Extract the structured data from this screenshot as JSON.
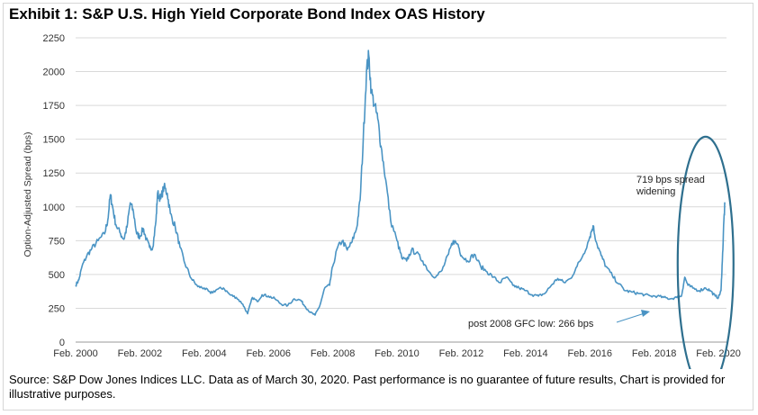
{
  "title": "Exhibit 1: S&P U.S. High Yield Corporate Bond Index OAS History",
  "source": "Source: S&P Dow Jones Indices LLC. Data as of March 30, 2020. Past performance is no guarantee of future results, Chart is provided for illustrative purposes.",
  "colors": {
    "line": "#4a94c4",
    "circle": "#2e6f8e",
    "arrow": "#4a94c4",
    "grid": "#d9d9d9"
  },
  "chart_data": {
    "type": "line",
    "title": "Exhibit 1: S&P U.S. High Yield Corporate Bond Index OAS History",
    "xlabel": "",
    "ylabel": "Option-Adjusted Spread (bps)",
    "xlim": [
      2000.0,
      2020.25
    ],
    "ylim": [
      0,
      2250
    ],
    "yticks": [
      0,
      250,
      500,
      750,
      1000,
      1250,
      1500,
      1750,
      2000,
      2250
    ],
    "xticks": [
      {
        "label": "Feb. 2000",
        "value": 2000.0
      },
      {
        "label": "Feb. 2002",
        "value": 2002.0
      },
      {
        "label": "Feb. 2004",
        "value": 2004.0
      },
      {
        "label": "Feb. 2006",
        "value": 2006.0
      },
      {
        "label": "Feb. 2008",
        "value": 2008.0
      },
      {
        "label": "Feb. 2010",
        "value": 2010.0
      },
      {
        "label": "Feb. 2012",
        "value": 2012.0
      },
      {
        "label": "Feb. 2014",
        "value": 2014.0
      },
      {
        "label": "Feb. 2016",
        "value": 2016.0
      },
      {
        "label": "Feb. 2018",
        "value": 2018.0
      },
      {
        "label": "Feb. 2020",
        "value": 2020.0
      }
    ],
    "grid": true,
    "series": [
      {
        "name": "OAS",
        "points": [
          [
            2000.0,
            420
          ],
          [
            2000.1,
            460
          ],
          [
            2000.2,
            560
          ],
          [
            2000.35,
            640
          ],
          [
            2000.5,
            690
          ],
          [
            2000.7,
            750
          ],
          [
            2000.9,
            800
          ],
          [
            2001.0,
            900
          ],
          [
            2001.08,
            1090
          ],
          [
            2001.15,
            1000
          ],
          [
            2001.25,
            870
          ],
          [
            2001.4,
            800
          ],
          [
            2001.5,
            760
          ],
          [
            2001.6,
            850
          ],
          [
            2001.7,
            1030
          ],
          [
            2001.8,
            960
          ],
          [
            2001.9,
            800
          ],
          [
            2002.0,
            780
          ],
          [
            2002.1,
            840
          ],
          [
            2002.2,
            760
          ],
          [
            2002.3,
            700
          ],
          [
            2002.4,
            700
          ],
          [
            2002.5,
            900
          ],
          [
            2002.55,
            1100
          ],
          [
            2002.65,
            1060
          ],
          [
            2002.75,
            1150
          ],
          [
            2002.85,
            1100
          ],
          [
            2002.95,
            950
          ],
          [
            2003.1,
            850
          ],
          [
            2003.25,
            700
          ],
          [
            2003.4,
            580
          ],
          [
            2003.6,
            470
          ],
          [
            2003.8,
            410
          ],
          [
            2004.0,
            400
          ],
          [
            2004.2,
            360
          ],
          [
            2004.4,
            390
          ],
          [
            2004.6,
            400
          ],
          [
            2004.8,
            350
          ],
          [
            2005.0,
            330
          ],
          [
            2005.2,
            280
          ],
          [
            2005.35,
            210
          ],
          [
            2005.5,
            330
          ],
          [
            2005.65,
            300
          ],
          [
            2005.8,
            350
          ],
          [
            2006.0,
            340
          ],
          [
            2006.2,
            320
          ],
          [
            2006.4,
            280
          ],
          [
            2006.6,
            270
          ],
          [
            2006.8,
            320
          ],
          [
            2007.0,
            310
          ],
          [
            2007.15,
            260
          ],
          [
            2007.3,
            220
          ],
          [
            2007.45,
            200
          ],
          [
            2007.6,
            270
          ],
          [
            2007.75,
            400
          ],
          [
            2007.9,
            420
          ],
          [
            2008.0,
            560
          ],
          [
            2008.15,
            700
          ],
          [
            2008.3,
            750
          ],
          [
            2008.45,
            680
          ],
          [
            2008.6,
            740
          ],
          [
            2008.75,
            850
          ],
          [
            2008.85,
            1050
          ],
          [
            2008.95,
            1500
          ],
          [
            2009.05,
            2000
          ],
          [
            2009.12,
            2120
          ],
          [
            2009.2,
            1850
          ],
          [
            2009.3,
            1750
          ],
          [
            2009.4,
            1650
          ],
          [
            2009.5,
            1450
          ],
          [
            2009.65,
            1200
          ],
          [
            2009.8,
            900
          ],
          [
            2010.0,
            750
          ],
          [
            2010.15,
            620
          ],
          [
            2010.3,
            600
          ],
          [
            2010.45,
            680
          ],
          [
            2010.6,
            660
          ],
          [
            2010.8,
            600
          ],
          [
            2011.0,
            520
          ],
          [
            2011.2,
            480
          ],
          [
            2011.4,
            530
          ],
          [
            2011.6,
            650
          ],
          [
            2011.75,
            750
          ],
          [
            2011.9,
            720
          ],
          [
            2012.0,
            640
          ],
          [
            2012.2,
            600
          ],
          [
            2012.4,
            650
          ],
          [
            2012.6,
            560
          ],
          [
            2012.8,
            520
          ],
          [
            2013.0,
            480
          ],
          [
            2013.2,
            440
          ],
          [
            2013.4,
            480
          ],
          [
            2013.6,
            420
          ],
          [
            2013.8,
            400
          ],
          [
            2014.0,
            380
          ],
          [
            2014.2,
            350
          ],
          [
            2014.4,
            340
          ],
          [
            2014.6,
            360
          ],
          [
            2014.8,
            420
          ],
          [
            2015.0,
            470
          ],
          [
            2015.2,
            440
          ],
          [
            2015.4,
            470
          ],
          [
            2015.6,
            560
          ],
          [
            2015.8,
            650
          ],
          [
            2016.0,
            780
          ],
          [
            2016.1,
            860
          ],
          [
            2016.2,
            740
          ],
          [
            2016.35,
            640
          ],
          [
            2016.5,
            560
          ],
          [
            2016.7,
            490
          ],
          [
            2016.9,
            430
          ],
          [
            2017.1,
            380
          ],
          [
            2017.3,
            370
          ],
          [
            2017.5,
            360
          ],
          [
            2017.7,
            350
          ],
          [
            2017.9,
            340
          ],
          [
            2018.1,
            340
          ],
          [
            2018.3,
            330
          ],
          [
            2018.5,
            320
          ],
          [
            2018.7,
            330
          ],
          [
            2018.85,
            340
          ],
          [
            2018.95,
            480
          ],
          [
            2019.05,
            420
          ],
          [
            2019.2,
            400
          ],
          [
            2019.4,
            380
          ],
          [
            2019.6,
            400
          ],
          [
            2019.75,
            380
          ],
          [
            2019.9,
            340
          ],
          [
            2020.0,
            330
          ],
          [
            2020.08,
            380
          ],
          [
            2020.12,
            600
          ],
          [
            2020.17,
            900
          ],
          [
            2020.2,
            1020
          ]
        ]
      }
    ],
    "annotations": [
      {
        "id": "spread",
        "lines": [
          "719 bps spread",
          "widening"
        ]
      },
      {
        "id": "gfc_low",
        "text": "post 2008 GFC low: 266 bps"
      }
    ]
  }
}
